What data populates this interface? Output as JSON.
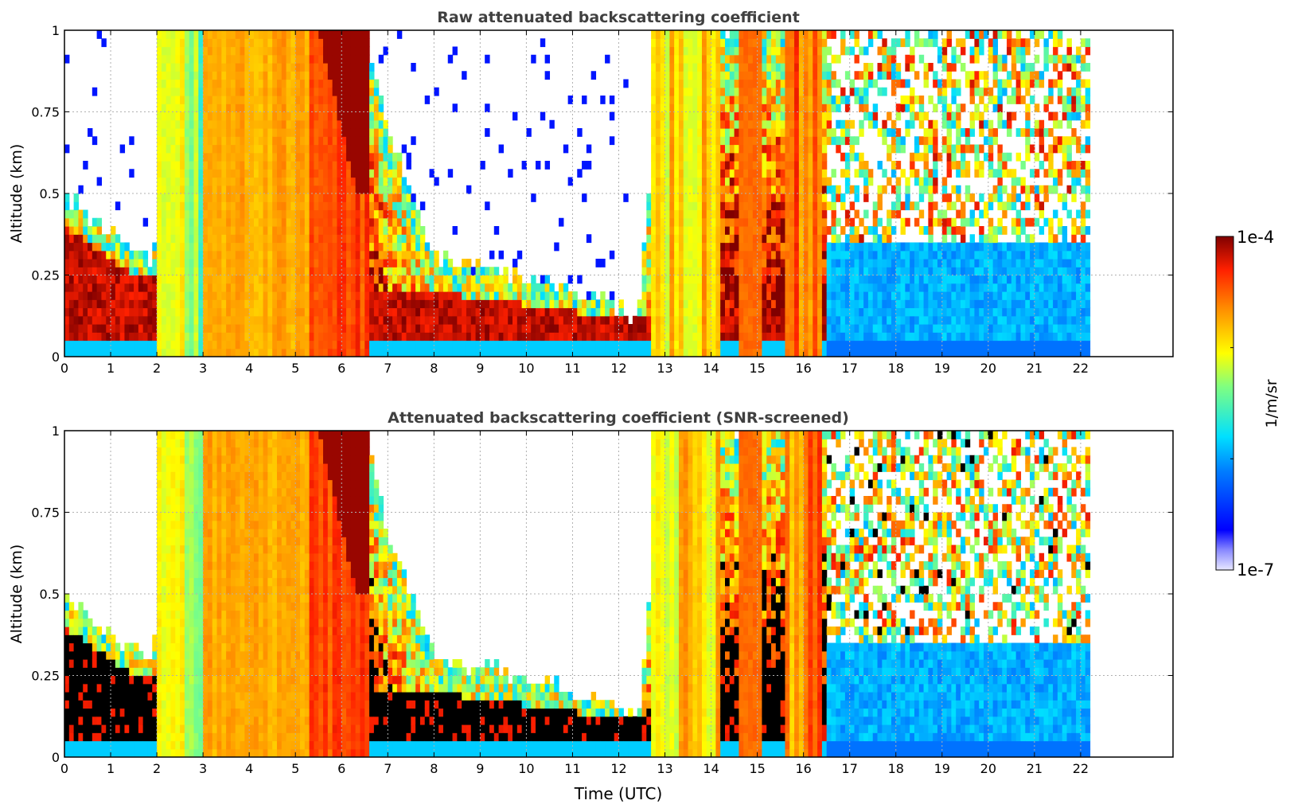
{
  "figure": {
    "colorbar_label": "1/m/sr"
  },
  "chart_data": [
    {
      "type": "heatmap",
      "title": "Raw attenuated backscattering coefficient",
      "xlabel": "",
      "ylabel": "Altitude (km)",
      "xlim": [
        0,
        24
      ],
      "ylim": [
        0,
        1
      ],
      "x_ticks": [
        "0",
        "1",
        "2",
        "3",
        "4",
        "5",
        "6",
        "7",
        "8",
        "9",
        "10",
        "11",
        "12",
        "13",
        "14",
        "15",
        "16",
        "17",
        "18",
        "19",
        "20",
        "21",
        "22"
      ],
      "y_ticks": [
        "0",
        "0.25",
        "0.5",
        "0.75",
        "1"
      ],
      "data_end_x": 22.2,
      "grid": true,
      "layer_top_km": [
        [
          0,
          0.5
        ],
        [
          1,
          0.38
        ],
        [
          1.9,
          0.3
        ],
        [
          2.5,
          1
        ],
        [
          5.5,
          1
        ],
        [
          6.5,
          1
        ],
        [
          7,
          0.7
        ],
        [
          8,
          0.3
        ],
        [
          10,
          0.25
        ],
        [
          12,
          0.15
        ],
        [
          12.4,
          0.1
        ],
        [
          13,
          1
        ],
        [
          22.2,
          1
        ]
      ],
      "dense_layer_km": [
        [
          0,
          0.4
        ],
        [
          1.5,
          0.25
        ],
        [
          6,
          0.2
        ],
        [
          8,
          0.2
        ],
        [
          10,
          0.16
        ],
        [
          12,
          0.12
        ]
      ]
    },
    {
      "type": "heatmap",
      "title": "Attenuated backscattering coefficient (SNR-screened)",
      "xlabel": "Time (UTC)",
      "ylabel": "Altitude (km)",
      "xlim": [
        0,
        24
      ],
      "ylim": [
        0,
        1
      ],
      "x_ticks": [
        "0",
        "1",
        "2",
        "3",
        "4",
        "5",
        "6",
        "7",
        "8",
        "9",
        "10",
        "11",
        "12",
        "13",
        "14",
        "15",
        "16",
        "17",
        "18",
        "19",
        "20",
        "21",
        "22"
      ],
      "y_ticks": [
        "0",
        "0.25",
        "0.5",
        "0.75",
        "1"
      ],
      "data_end_x": 22.2,
      "grid": true
    }
  ],
  "colorbar": {
    "max_label": "1e-4",
    "min_label": "1e-7",
    "label": "1/m/sr",
    "scale": "log",
    "range": [
      "1e-7",
      "1e-4"
    ]
  }
}
